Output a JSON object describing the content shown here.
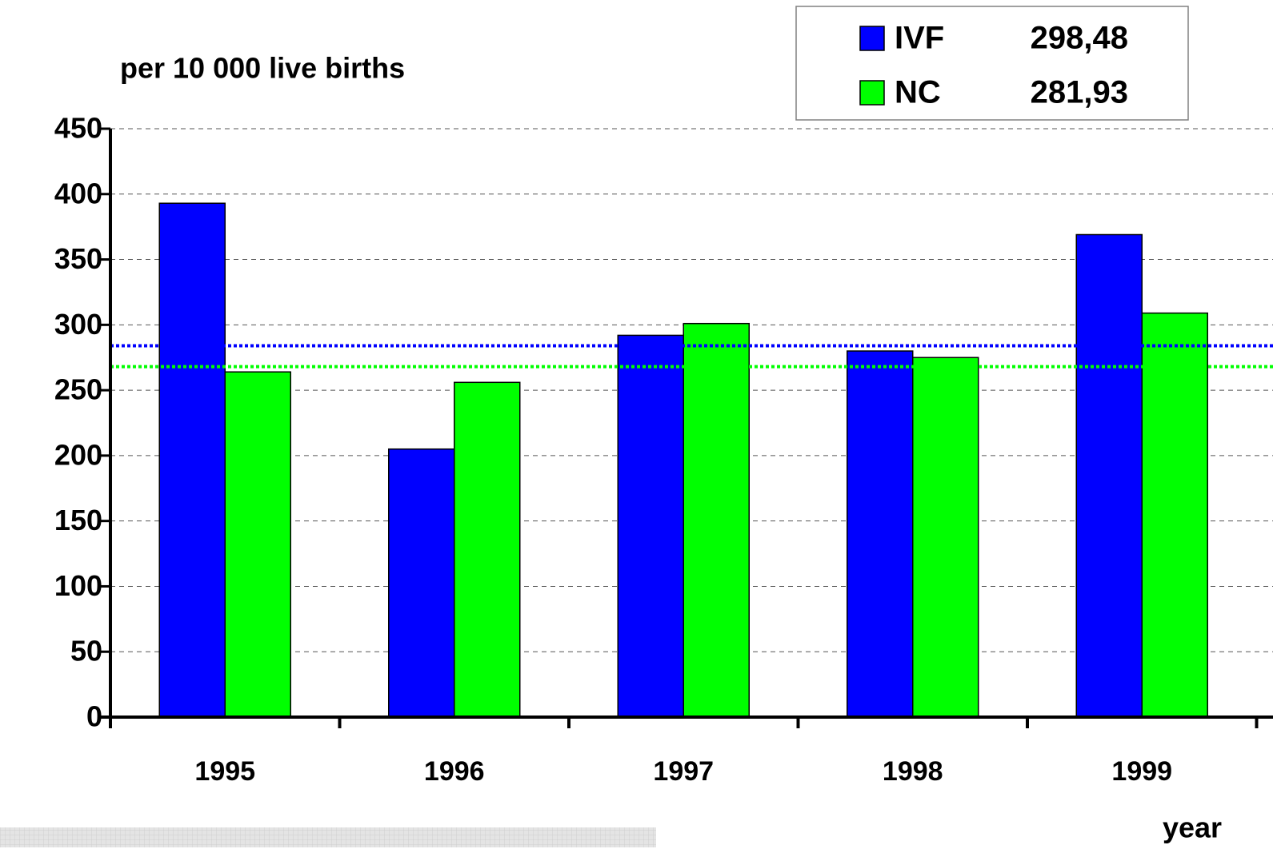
{
  "chart_data": {
    "type": "bar",
    "y_axis_label": "per 10 000 live births",
    "x_axis_label": "year",
    "categories": [
      "1995",
      "1996",
      "1997",
      "1998",
      "1999"
    ],
    "series": [
      {
        "name": "IVF",
        "legend_value": "298,48",
        "color": "#0000ff",
        "values": [
          393,
          205,
          292,
          280,
          369
        ]
      },
      {
        "name": "NC",
        "legend_value": "281,93",
        "color": "#00ff00",
        "values": [
          264,
          256,
          301,
          275,
          309
        ]
      }
    ],
    "reference_lines": [
      {
        "value": 284,
        "color": "#0000ff"
      },
      {
        "value": 268,
        "color": "#00ff00"
      }
    ],
    "ylim": [
      0,
      450
    ],
    "yticks": [
      0,
      50,
      100,
      150,
      200,
      250,
      300,
      350,
      400,
      450
    ],
    "grid": true
  }
}
